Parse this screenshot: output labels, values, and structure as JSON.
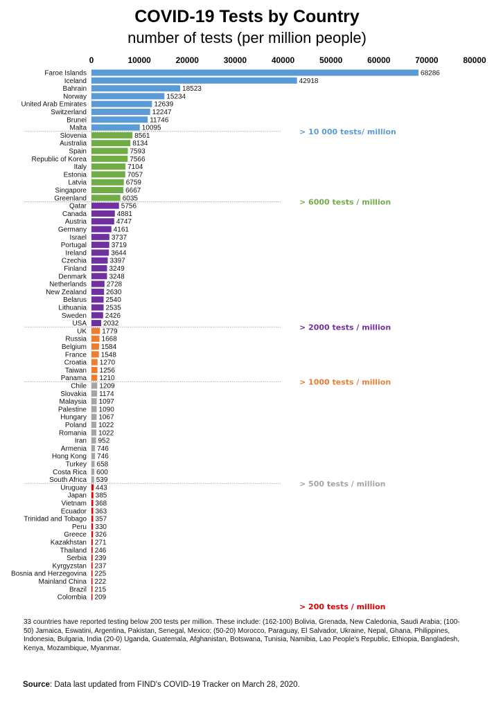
{
  "chart_data": {
    "type": "bar",
    "orientation": "horizontal",
    "title": "COVID-19 Tests by Country",
    "subtitle": "number of tests (per million people)",
    "xlim": [
      0,
      80000
    ],
    "xticks": [
      "0",
      "10000",
      "20000",
      "30000",
      "40000",
      "50000",
      "60000",
      "70000",
      "80000"
    ],
    "xaxis_position": "top",
    "grid": false,
    "groups": [
      {
        "label": "> 10 000 tests/ million",
        "color": "#5b9bd5",
        "count": 8
      },
      {
        "label": "> 6000 tests / million",
        "color": "#70ad47",
        "count": 9
      },
      {
        "label": "> 2000 tests / million",
        "color": "#7030a0",
        "count": 16
      },
      {
        "label": "> 1000 tests / million",
        "color": "#ed7d31",
        "count": 7
      },
      {
        "label": "> 500 tests / million",
        "color": "#a5a5a5",
        "count": 13
      },
      {
        "label": "> 200 tests / million",
        "color": "#e00000",
        "count": 15
      }
    ],
    "categories": [
      "Faroe Islands",
      "Iceland",
      "Bahrain",
      "Norway",
      "United Arab Emirates",
      "Switzerland",
      "Brunei",
      "Malta",
      "Slovenia",
      "Australia",
      "Spain",
      "Republic of Korea",
      "Italy",
      "Estonia",
      "Latvia",
      "Singapore",
      "Greenland",
      "Qatar",
      "Canada",
      "Austria",
      "Germany",
      "Israel",
      "Portugal",
      "Ireland",
      "Czechia",
      "Finland",
      "Denmark",
      "Netherlands",
      "New Zealand",
      "Belarus",
      "Lithuania",
      "Sweden",
      "USA",
      "UK",
      "Russia",
      "Belgium",
      "France",
      "Croatia",
      "Taiwan",
      "Panama",
      "Chile",
      "Slovakia",
      "Malaysia",
      "Palestine",
      "Hungary",
      "Poland",
      "Romania",
      "Iran",
      "Armenia",
      "Hong Kong",
      "Turkey",
      "Costa Rica",
      "South Africa",
      "Uruguay",
      "Japan",
      "Vietnam",
      "Ecuador",
      "Trinidad and Tobago",
      "Peru",
      "Greece",
      "Kazakhstan",
      "Thailand",
      "Serbia",
      "Kyrgyzstan",
      "Bosnia and Herzegovina",
      "Mainland China",
      "Brazil",
      "Colombia"
    ],
    "values": [
      68286,
      42918,
      18523,
      15234,
      12639,
      12247,
      11746,
      10095,
      8561,
      8134,
      7593,
      7566,
      7104,
      7057,
      6759,
      6667,
      6035,
      5756,
      4881,
      4747,
      4161,
      3737,
      3719,
      3644,
      3397,
      3249,
      3248,
      2728,
      2630,
      2540,
      2535,
      2426,
      2032,
      1779,
      1668,
      1584,
      1548,
      1270,
      1256,
      1210,
      1209,
      1174,
      1097,
      1090,
      1067,
      1022,
      1022,
      952,
      746,
      746,
      658,
      600,
      539,
      443,
      385,
      368,
      363,
      357,
      330,
      326,
      271,
      246,
      239,
      237,
      225,
      222,
      215,
      209
    ]
  },
  "footnote": "33 countries have reported testing below 200 tests per million. These include: (162-100) Bolivia, Grenada, New Caledonia, Saudi Arabia; (100-50) Jamaica, Eswatini, Argentina, Pakistan, Senegal, Mexico; (50-20) Morocco, Paraguay, El Salvador, Ukraine, Nepal, Ghana, Philippines, Indonesia, Bulgaria, India (20-0) Uganda, Guatemala, Afghanistan, Botswana, Tunisia, Namibia, Lao People's Republic, Ethiopia, Bangladesh, Kenya, Mozambique, Myanmar.",
  "source": {
    "label": "Source",
    "text": ": Data last updated from FIND's COVID-19 Tracker on March 28, 2020."
  }
}
